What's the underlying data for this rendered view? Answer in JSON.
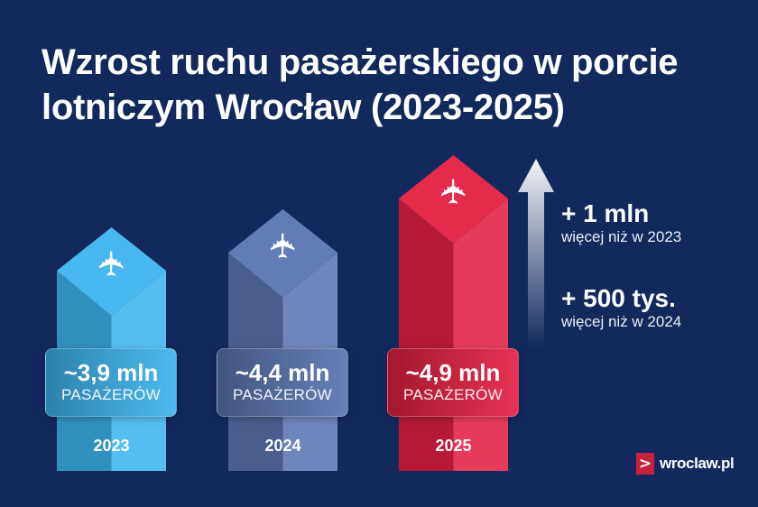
{
  "title": "Wzrost ruchu pasażerskiego w porcie lotniczym Wrocław (2023-2025)",
  "chart_data": {
    "type": "bar",
    "title": "Wzrost ruchu pasażerskiego w porcie lotniczym Wrocław (2023-2025)",
    "categories": [
      "2023",
      "2024",
      "2025"
    ],
    "values": [
      3.9,
      4.4,
      4.9
    ],
    "unit": "mln pasażerów",
    "data_labels": [
      "~3,9 mln",
      "~4,4 mln",
      "~4,9 mln"
    ],
    "data_sublabel": "PASAŻERÓW",
    "colors": [
      "#3fb4ef",
      "#5b74b3",
      "#e42043"
    ],
    "icon": "airplane-icon"
  },
  "annotations": [
    {
      "big": "+ 1 mln",
      "small": "więcej niż w 2023"
    },
    {
      "big": "+ 500 tys.",
      "small": "więcej niż w 2024"
    }
  ],
  "logo": {
    "mark": ">",
    "text": "wroclaw.pl"
  }
}
